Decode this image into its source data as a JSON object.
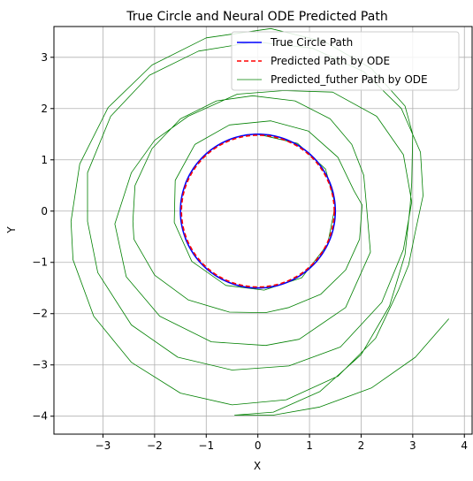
{
  "chart_data": {
    "type": "line",
    "title": "True Circle and Neural ODE Predicted Path",
    "xlabel": "X",
    "ylabel": "Y",
    "xlim": [
      -3.95,
      4.15
    ],
    "ylim": [
      -4.35,
      3.6
    ],
    "xticks": [
      -3,
      -2,
      -1,
      0,
      1,
      2,
      3,
      4
    ],
    "yticks": [
      -4,
      -3,
      -2,
      -1,
      0,
      1,
      2,
      3
    ],
    "grid": true,
    "legend_position": "top-right",
    "series": [
      {
        "name": "True Circle Path",
        "kind": "circle",
        "color": "#0000ff",
        "style": "solid",
        "center": [
          0,
          0
        ],
        "radius": 1.5
      },
      {
        "name": "Predicted Path by ODE",
        "kind": "circle",
        "color": "#ff0000",
        "style": "dashed",
        "center": [
          0,
          0
        ],
        "radius": 1.48
      },
      {
        "name": "Predicted_futher Path by ODE",
        "kind": "spiral",
        "color": "#008000",
        "style": "solid",
        "points": [
          [
            0,
            1.5
          ],
          [
            0.77,
            1.32
          ],
          [
            1.31,
            0.82
          ],
          [
            1.5,
            0.12
          ],
          [
            1.35,
            -0.65
          ],
          [
            0.85,
            -1.3
          ],
          [
            0.12,
            -1.54
          ],
          [
            -0.62,
            -1.45
          ],
          [
            -1.28,
            -0.98
          ],
          [
            -1.62,
            -0.22
          ],
          [
            -1.6,
            0.6
          ],
          [
            -1.22,
            1.3
          ],
          [
            -0.55,
            1.68
          ],
          [
            0.25,
            1.76
          ],
          [
            0.98,
            1.56
          ],
          [
            1.55,
            1.05
          ],
          [
            1.86,
            0.4
          ],
          [
            2.02,
            0.12
          ],
          [
            1.97,
            -0.55
          ],
          [
            1.7,
            -1.15
          ],
          [
            1.22,
            -1.62
          ],
          [
            0.6,
            -1.88
          ],
          [
            0.15,
            -1.98
          ],
          [
            -0.55,
            -1.97
          ],
          [
            -1.35,
            -1.73
          ],
          [
            -2.0,
            -1.25
          ],
          [
            -2.4,
            -0.55
          ],
          [
            -2.42,
            -0.2
          ],
          [
            -2.38,
            0.5
          ],
          [
            -2.05,
            1.22
          ],
          [
            -1.5,
            1.8
          ],
          [
            -0.8,
            2.15
          ],
          [
            -0.1,
            2.25
          ],
          [
            0.72,
            2.15
          ],
          [
            1.4,
            1.8
          ],
          [
            1.82,
            1.3
          ],
          [
            2.05,
            0.7
          ],
          [
            2.1,
            0.15
          ],
          [
            2.18,
            -0.8
          ],
          [
            1.7,
            -1.88
          ],
          [
            0.8,
            -2.5
          ],
          [
            0.15,
            -2.62
          ],
          [
            -0.9,
            -2.55
          ],
          [
            -1.9,
            -2.05
          ],
          [
            -2.55,
            -1.28
          ],
          [
            -2.77,
            -0.25
          ],
          [
            -2.45,
            0.75
          ],
          [
            -2.0,
            1.38
          ],
          [
            -1.35,
            1.85
          ],
          [
            -0.4,
            2.28
          ],
          [
            0.5,
            2.35
          ],
          [
            1.45,
            2.32
          ],
          [
            2.3,
            1.85
          ],
          [
            2.82,
            1.1
          ],
          [
            2.98,
            0.18
          ],
          [
            2.82,
            -0.75
          ],
          [
            2.4,
            -1.78
          ],
          [
            1.6,
            -2.65
          ],
          [
            0.6,
            -3.02
          ],
          [
            -0.5,
            -3.1
          ],
          [
            -1.55,
            -2.85
          ],
          [
            -2.45,
            -2.22
          ],
          [
            -3.1,
            -1.2
          ],
          [
            -3.3,
            -0.2
          ],
          [
            -3.3,
            0.75
          ],
          [
            -2.85,
            1.85
          ],
          [
            -2.1,
            2.65
          ],
          [
            -1.15,
            3.12
          ],
          [
            -0.05,
            3.3
          ],
          [
            1.05,
            3.18
          ],
          [
            2.05,
            2.72
          ],
          [
            2.78,
            2.0
          ],
          [
            3.15,
            1.15
          ],
          [
            3.2,
            0.3
          ],
          [
            3.05,
            -0.4
          ],
          [
            2.92,
            -1.05
          ],
          [
            2.72,
            -1.55
          ],
          [
            2.28,
            -2.48
          ],
          [
            1.55,
            -3.22
          ],
          [
            0.55,
            -3.68
          ],
          [
            -0.5,
            -3.78
          ],
          [
            -1.5,
            -3.55
          ],
          [
            -2.45,
            -2.95
          ],
          [
            -3.18,
            -2.05
          ],
          [
            -3.58,
            -0.95
          ],
          [
            -3.62,
            -0.2
          ],
          [
            -3.45,
            0.92
          ],
          [
            -2.9,
            2.02
          ],
          [
            -2.05,
            2.85
          ],
          [
            -1.0,
            3.38
          ],
          [
            0.25,
            3.56
          ],
          [
            1.3,
            3.3
          ],
          [
            2.2,
            2.78
          ],
          [
            2.85,
            2.05
          ],
          [
            3.0,
            1.5
          ],
          [
            2.98,
            0.55
          ],
          [
            2.95,
            0.1
          ],
          [
            2.85,
            -0.85
          ],
          [
            2.55,
            -1.85
          ],
          [
            2.0,
            -2.8
          ],
          [
            1.2,
            -3.52
          ],
          [
            0.3,
            -3.92
          ],
          [
            -0.45,
            -3.98
          ],
          [
            0.3,
            -3.98
          ],
          [
            1.2,
            -3.82
          ],
          [
            2.2,
            -3.45
          ],
          [
            3.05,
            -2.85
          ],
          [
            3.7,
            -2.1
          ]
        ]
      }
    ],
    "legend": [
      "True Circle Path",
      "Predicted Path by ODE",
      "Predicted_futher Path by ODE"
    ]
  }
}
